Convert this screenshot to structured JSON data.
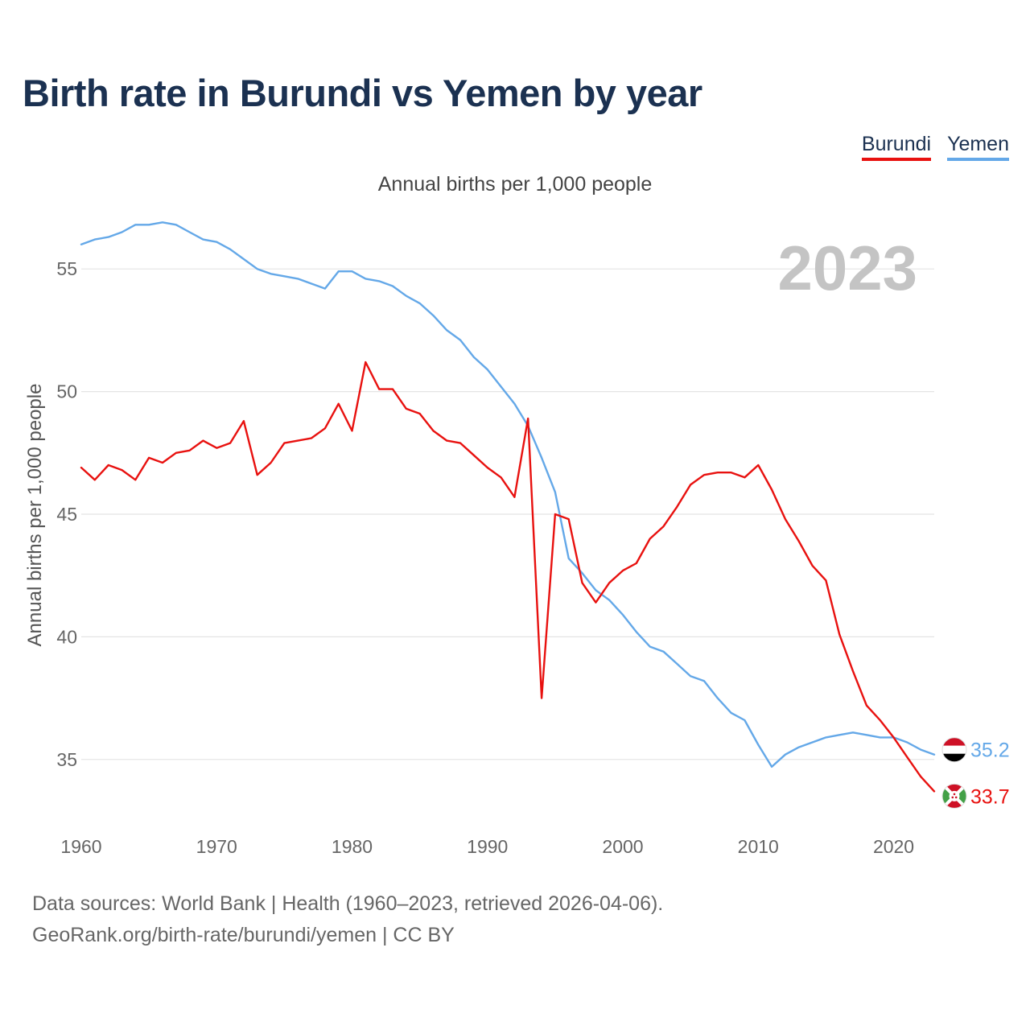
{
  "title": "Birth rate in Burundi vs Yemen by year",
  "subtitle": "Annual births per 1,000 people",
  "watermark_year": "2023",
  "legend": [
    {
      "name": "Burundi",
      "color": "#e8110f"
    },
    {
      "name": "Yemen",
      "color": "#64a8e8"
    }
  ],
  "source": {
    "line1": "Data sources: World Bank | Health (1960–2023, retrieved 2026-04-06).",
    "line2": "GeoRank.org/birth-rate/burundi/yemen | CC BY"
  },
  "chart_data": {
    "type": "line",
    "title": "Birth rate in Burundi vs Yemen by year",
    "subtitle": "Annual births per 1,000 people",
    "xlabel": "",
    "ylabel": "Annual births per 1,000 people",
    "xlim": [
      1960,
      2023
    ],
    "ylim": [
      32.5,
      57.5
    ],
    "xticks": [
      1960,
      1970,
      1980,
      1990,
      2000,
      2010,
      2020
    ],
    "yticks": [
      35,
      40,
      45,
      50,
      55
    ],
    "grid": "horizontal",
    "legend_position": "top-right",
    "x": [
      1960,
      1961,
      1962,
      1963,
      1964,
      1965,
      1966,
      1967,
      1968,
      1969,
      1970,
      1971,
      1972,
      1973,
      1974,
      1975,
      1976,
      1977,
      1978,
      1979,
      1980,
      1981,
      1982,
      1983,
      1984,
      1985,
      1986,
      1987,
      1988,
      1989,
      1990,
      1991,
      1992,
      1993,
      1994,
      1995,
      1996,
      1997,
      1998,
      1999,
      2000,
      2001,
      2002,
      2003,
      2004,
      2005,
      2006,
      2007,
      2008,
      2009,
      2010,
      2011,
      2012,
      2013,
      2014,
      2015,
      2016,
      2017,
      2018,
      2019,
      2020,
      2021,
      2022,
      2023
    ],
    "series": [
      {
        "name": "Burundi",
        "color": "#e8110f",
        "end_label": "33.7",
        "flag": "burundi-flag-icon",
        "values": [
          46.9,
          46.4,
          47.0,
          46.8,
          46.4,
          47.3,
          47.1,
          47.5,
          47.6,
          48.0,
          47.7,
          47.9,
          48.8,
          46.6,
          47.1,
          47.9,
          48.0,
          48.1,
          48.5,
          49.5,
          48.4,
          51.2,
          50.1,
          50.1,
          49.3,
          49.1,
          48.4,
          48.0,
          47.9,
          47.4,
          46.9,
          46.5,
          45.7,
          48.9,
          37.5,
          45.0,
          44.8,
          42.2,
          41.4,
          42.2,
          42.7,
          43.0,
          44.0,
          44.5,
          45.3,
          46.2,
          46.6,
          46.7,
          46.7,
          46.5,
          47.0,
          46.0,
          44.8,
          43.9,
          42.9,
          42.3,
          40.1,
          38.6,
          37.2,
          36.6,
          35.9,
          35.1,
          34.3,
          33.7
        ]
      },
      {
        "name": "Yemen",
        "color": "#64a8e8",
        "end_label": "35.2",
        "flag": "yemen-flag-icon",
        "values": [
          56.0,
          56.2,
          56.3,
          56.5,
          56.8,
          56.8,
          56.9,
          56.8,
          56.5,
          56.2,
          56.1,
          55.8,
          55.4,
          55.0,
          54.8,
          54.7,
          54.6,
          54.4,
          54.2,
          54.9,
          54.9,
          54.6,
          54.5,
          54.3,
          53.9,
          53.6,
          53.1,
          52.5,
          52.1,
          51.4,
          50.9,
          50.2,
          49.5,
          48.6,
          47.3,
          45.9,
          43.2,
          42.6,
          41.9,
          41.5,
          40.9,
          40.2,
          39.6,
          39.4,
          38.9,
          38.4,
          38.2,
          37.5,
          36.9,
          36.6,
          35.6,
          34.7,
          35.2,
          35.5,
          35.7,
          35.9,
          36.0,
          36.1,
          36.0,
          35.9,
          35.9,
          35.7,
          35.4,
          35.2
        ]
      }
    ]
  }
}
